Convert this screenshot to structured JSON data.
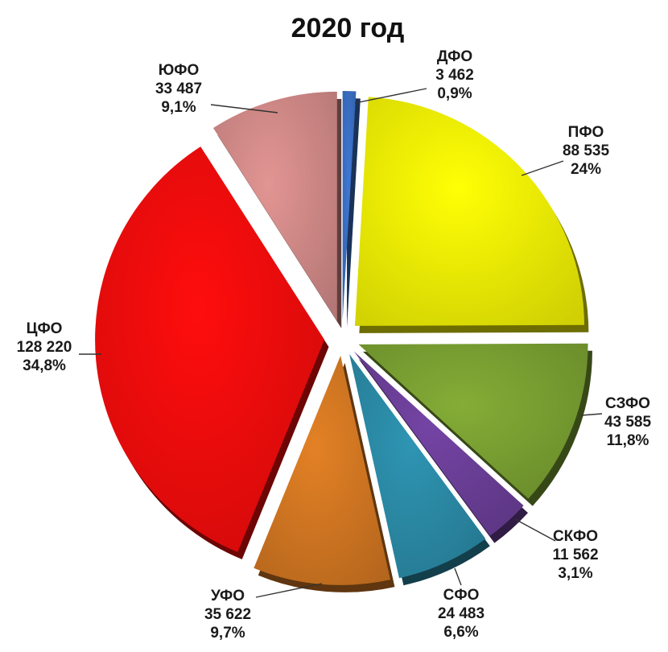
{
  "chart_data": {
    "type": "pie",
    "title": "2020 год",
    "slices": [
      {
        "name": "ДФО",
        "value": 3462,
        "value_label": "3 462",
        "percent": 0.9,
        "percent_label": "0,9%",
        "color": "#3a6fc4"
      },
      {
        "name": "ПФО",
        "value": 88535,
        "value_label": "88 535",
        "percent": 24.0,
        "percent_label": "24%",
        "color": "#f2f205"
      },
      {
        "name": "СЗФО",
        "value": 43585,
        "value_label": "43 585",
        "percent": 11.8,
        "percent_label": "11,8%",
        "color": "#7aa032"
      },
      {
        "name": "СКФО",
        "value": 11562,
        "value_label": "11 562",
        "percent": 3.1,
        "percent_label": "3,1%",
        "color": "#6b3f98"
      },
      {
        "name": "СФО",
        "value": 24483,
        "value_label": "24 483",
        "percent": 6.6,
        "percent_label": "6,6%",
        "color": "#2b8aa6"
      },
      {
        "name": "УФО",
        "value": 35622,
        "value_label": "35 622",
        "percent": 9.7,
        "percent_label": "9,7%",
        "color": "#d27722"
      },
      {
        "name": "ЦФО",
        "value": 128220,
        "value_label": "128 220",
        "percent": 34.8,
        "percent_label": "34,8%",
        "color": "#f20c0c"
      },
      {
        "name": "ЮФО",
        "value": 33487,
        "value_label": "33 487",
        "percent": 9.1,
        "percent_label": "9,1%",
        "color": "#d18a88"
      }
    ],
    "exploded": true,
    "legend": "none",
    "data_labels": "outside-with-leader-lines"
  }
}
